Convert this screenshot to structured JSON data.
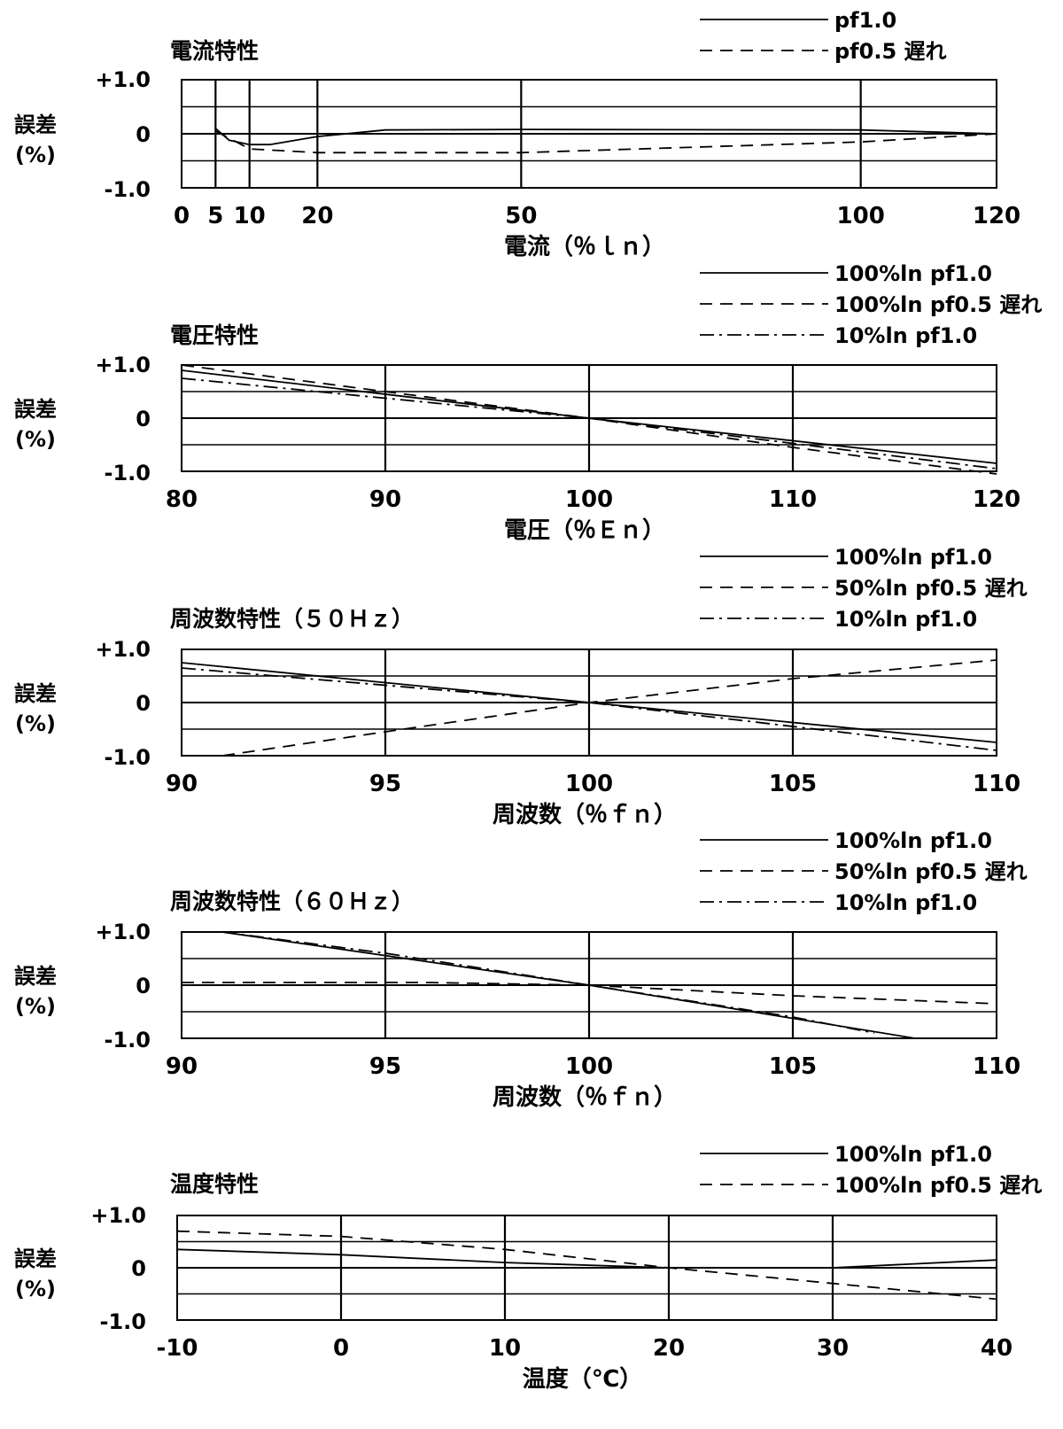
{
  "y_axis": {
    "label_line1": "誤差",
    "label_line2": "(%)",
    "ticks": [
      "+1.0",
      "0",
      "-1.0"
    ]
  },
  "chart_data": [
    {
      "type": "line",
      "title": "電流特性",
      "xlabel": "電流（％ｌｎ）",
      "ylabel": "誤差 (%)",
      "xlim": [
        0,
        120
      ],
      "ylim": [
        -1.0,
        1.0
      ],
      "x_ticks": [
        0,
        5,
        10,
        20,
        50,
        100,
        120
      ],
      "grid": true,
      "legend_position": "top-right",
      "series": [
        {
          "name": "pf1.0",
          "dash": "solid",
          "points": [
            [
              5,
              0.1
            ],
            [
              7,
              -0.12
            ],
            [
              10,
              -0.2
            ],
            [
              13,
              -0.2
            ],
            [
              20,
              -0.05
            ],
            [
              30,
              0.07
            ],
            [
              50,
              0.08
            ],
            [
              100,
              0.07
            ],
            [
              120,
              0.0
            ]
          ]
        },
        {
          "name": "pf0.5 遅れ",
          "dash": "dashed",
          "points": [
            [
              5,
              0.05
            ],
            [
              10,
              -0.28
            ],
            [
              20,
              -0.35
            ],
            [
              50,
              -0.35
            ],
            [
              100,
              -0.15
            ],
            [
              120,
              0.0
            ]
          ]
        }
      ]
    },
    {
      "type": "line",
      "title": "電圧特性",
      "xlabel": "電圧（％Ｅｎ）",
      "ylabel": "誤差 (%)",
      "xlim": [
        80,
        120
      ],
      "ylim": [
        -1.0,
        1.0
      ],
      "x_ticks": [
        80,
        90,
        100,
        110,
        120
      ],
      "grid": true,
      "legend_position": "top-right",
      "series": [
        {
          "name": "100%ln pf1.0",
          "dash": "solid",
          "points": [
            [
              80,
              0.9
            ],
            [
              100,
              0.0
            ],
            [
              120,
              -0.85
            ]
          ]
        },
        {
          "name": "100%ln pf0.5 遅れ",
          "dash": "dashed",
          "points": [
            [
              80,
              1.0
            ],
            [
              90,
              0.5
            ],
            [
              100,
              0.0
            ],
            [
              110,
              -0.55
            ],
            [
              120,
              -1.05
            ]
          ]
        },
        {
          "name": "10%ln pf1.0",
          "dash": "dashdot",
          "points": [
            [
              80,
              0.75
            ],
            [
              100,
              0.0
            ],
            [
              120,
              -0.95
            ]
          ]
        }
      ]
    },
    {
      "type": "line",
      "title": "周波数特性（５０Ｈｚ）",
      "xlabel": "周波数（％ｆｎ）",
      "ylabel": "誤差 (%)",
      "xlim": [
        90,
        110
      ],
      "ylim": [
        -1.0,
        1.0
      ],
      "x_ticks": [
        90,
        95,
        100,
        105,
        110
      ],
      "grid": true,
      "legend_position": "top-right",
      "series": [
        {
          "name": "100%ln pf1.0",
          "dash": "solid",
          "points": [
            [
              90,
              0.75
            ],
            [
              100,
              0.0
            ],
            [
              110,
              -0.75
            ]
          ]
        },
        {
          "name": "50%ln pf0.5 遅れ",
          "dash": "dashed",
          "points": [
            [
              91,
              -1.0
            ],
            [
              95,
              -0.55
            ],
            [
              100,
              0.0
            ],
            [
              105,
              0.45
            ],
            [
              110,
              0.8
            ]
          ]
        },
        {
          "name": "10%ln pf1.0",
          "dash": "dashdot",
          "points": [
            [
              90,
              0.65
            ],
            [
              100,
              0.0
            ],
            [
              110,
              -0.9
            ]
          ]
        }
      ]
    },
    {
      "type": "line",
      "title": "周波数特性（６０Ｈｚ）",
      "xlabel": "周波数（％ｆｎ）",
      "ylabel": "誤差 (%)",
      "xlim": [
        90,
        110
      ],
      "ylim": [
        -1.0,
        1.0
      ],
      "x_ticks": [
        90,
        95,
        100,
        105,
        110
      ],
      "grid": true,
      "legend_position": "top-right",
      "series": [
        {
          "name": "100%ln pf1.0",
          "dash": "solid",
          "points": [
            [
              91,
              1.0
            ],
            [
              100,
              0.0
            ],
            [
              108,
              -1.0
            ]
          ]
        },
        {
          "name": "50%ln pf0.5 遅れ",
          "dash": "dashed",
          "points": [
            [
              90,
              0.05
            ],
            [
              96,
              0.05
            ],
            [
              100,
              0.0
            ],
            [
              105,
              -0.2
            ],
            [
              110,
              -0.35
            ]
          ]
        },
        {
          "name": "10%ln pf1.0",
          "dash": "dashdot",
          "points": [
            [
              91,
              1.0
            ],
            [
              95,
              0.6
            ],
            [
              100,
              0.0
            ],
            [
              105,
              -0.6
            ],
            [
              107,
              -0.9
            ]
          ]
        }
      ]
    },
    {
      "type": "line",
      "title": "温度特性",
      "xlabel": "温度（℃）",
      "ylabel": "誤差 (%)",
      "xlim": [
        -10,
        40
      ],
      "ylim": [
        -1.0,
        1.0
      ],
      "x_ticks": [
        -10,
        0,
        10,
        20,
        30,
        40
      ],
      "grid": true,
      "legend_position": "top-right",
      "series": [
        {
          "name": "100%ln pf1.0",
          "dash": "solid",
          "points": [
            [
              -10,
              0.35
            ],
            [
              0,
              0.25
            ],
            [
              10,
              0.1
            ],
            [
              20,
              0.0
            ],
            [
              30,
              0.0
            ],
            [
              40,
              0.15
            ]
          ]
        },
        {
          "name": "100%ln pf0.5 遅れ",
          "dash": "dashed",
          "points": [
            [
              -10,
              0.7
            ],
            [
              0,
              0.6
            ],
            [
              10,
              0.35
            ],
            [
              20,
              0.0
            ],
            [
              30,
              -0.3
            ],
            [
              40,
              -0.6
            ]
          ]
        }
      ]
    }
  ]
}
